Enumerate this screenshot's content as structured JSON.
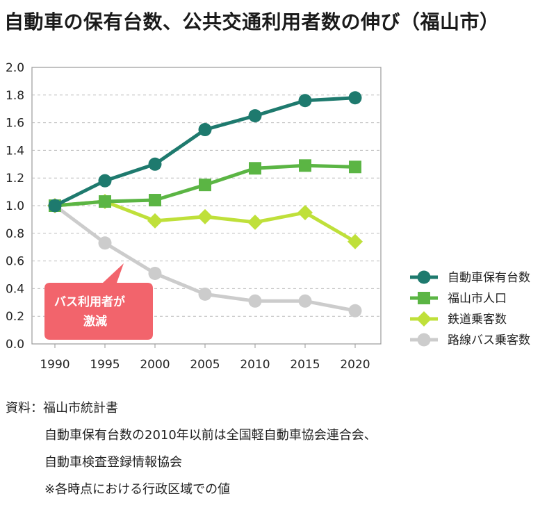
{
  "title": "自動車の保有台数、公共交通利用者数の伸び（福山市）",
  "chart_data": {
    "type": "line",
    "x": [
      1990,
      1995,
      2000,
      2005,
      2010,
      2015,
      2020
    ],
    "ylim": [
      0.0,
      2.0
    ],
    "yticks": [
      "0.0",
      "0.2",
      "0.4",
      "0.6",
      "0.8",
      "1.0",
      "1.2",
      "1.4",
      "1.6",
      "1.8",
      "2.0"
    ],
    "xticks": [
      "1990",
      "1995",
      "2000",
      "2005",
      "2010",
      "2015",
      "2020"
    ],
    "grid": true,
    "legend_position": "right",
    "series": [
      {
        "name": "自動車保有台数",
        "color": "#1e7a6e",
        "marker": "circle",
        "values": [
          1.0,
          1.18,
          1.3,
          1.55,
          1.65,
          1.76,
          1.78
        ]
      },
      {
        "name": "福山市人口",
        "color": "#5bb544",
        "marker": "square",
        "values": [
          1.0,
          1.03,
          1.04,
          1.15,
          1.27,
          1.29,
          1.28
        ]
      },
      {
        "name": "鉄道乗客数",
        "color": "#bfe03a",
        "marker": "diamond",
        "values": [
          1.0,
          1.03,
          0.89,
          0.92,
          0.88,
          0.95,
          0.74
        ]
      },
      {
        "name": "路線バス乗客数",
        "color": "#cccccc",
        "marker": "circle",
        "values": [
          1.0,
          0.73,
          0.51,
          0.36,
          0.31,
          0.31,
          0.24
        ]
      }
    ],
    "annotation": {
      "lines": [
        "バス利用者が",
        "激減"
      ],
      "color": "#f2646c"
    }
  },
  "source": {
    "line1": "資料：福山市統計書",
    "line2": "自動車保有台数の2010年以前は全国軽自動車協会連合会、",
    "line3": "自動車検査登録情報協会",
    "line4": "※各時点における行政区域での値"
  }
}
